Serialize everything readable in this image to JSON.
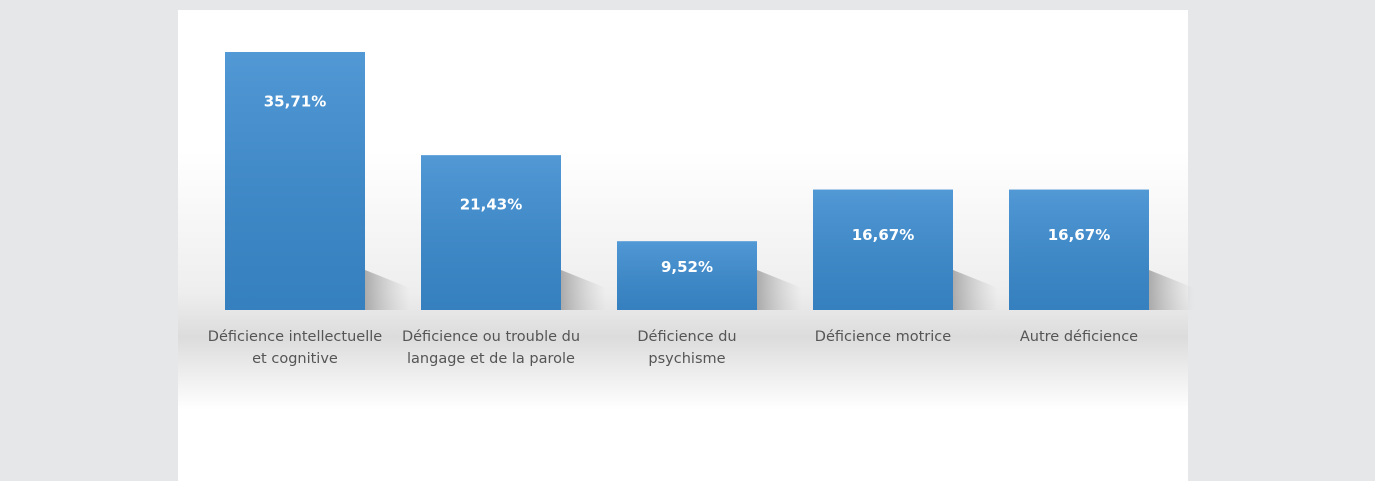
{
  "chart_data": {
    "type": "bar",
    "categories": [
      "Déficience intellectuelle et cognitive",
      "Déficience ou trouble du langage et de la parole",
      "Déficience du psychisme",
      "Déficience motrice",
      "Autre déficience"
    ],
    "values": [
      35.71,
      21.43,
      9.52,
      16.67,
      16.67
    ],
    "value_labels": [
      "35,71%",
      "21,43%",
      "9,52%",
      "16,67%",
      "16,67%"
    ],
    "color": "#3a8bd0",
    "ylim": [
      0,
      40
    ]
  }
}
